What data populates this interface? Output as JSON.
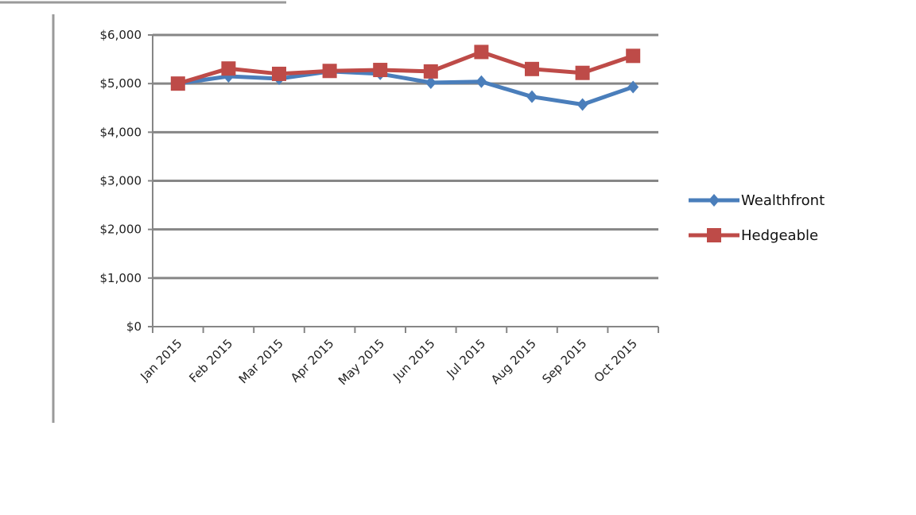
{
  "chart_data": {
    "type": "line",
    "categories": [
      "Jan 2015",
      "Feb 2015",
      "Mar 2015",
      "Apr 2015",
      "May 2015",
      "Jun 2015",
      "Jul 2015",
      "Aug 2015",
      "Sep 2015",
      "Oct 2015"
    ],
    "series": [
      {
        "name": "Wealthfront",
        "color": "#4a7ebb",
        "marker": "diamond",
        "values": [
          5000,
          5150,
          5100,
          5250,
          5200,
          5020,
          5040,
          4730,
          4570,
          4930
        ]
      },
      {
        "name": "Hedgeable",
        "color": "#be4b48",
        "marker": "square",
        "values": [
          5000,
          5310,
          5200,
          5260,
          5280,
          5250,
          5650,
          5300,
          5220,
          5570
        ]
      }
    ],
    "y_ticks": [
      "$0",
      "$1,000",
      "$2,000",
      "$3,000",
      "$4,000",
      "$5,000",
      "$6,000"
    ],
    "ylim": [
      0,
      6000
    ],
    "grid": true,
    "legend_position": "right",
    "gridline_color": "#868686"
  }
}
